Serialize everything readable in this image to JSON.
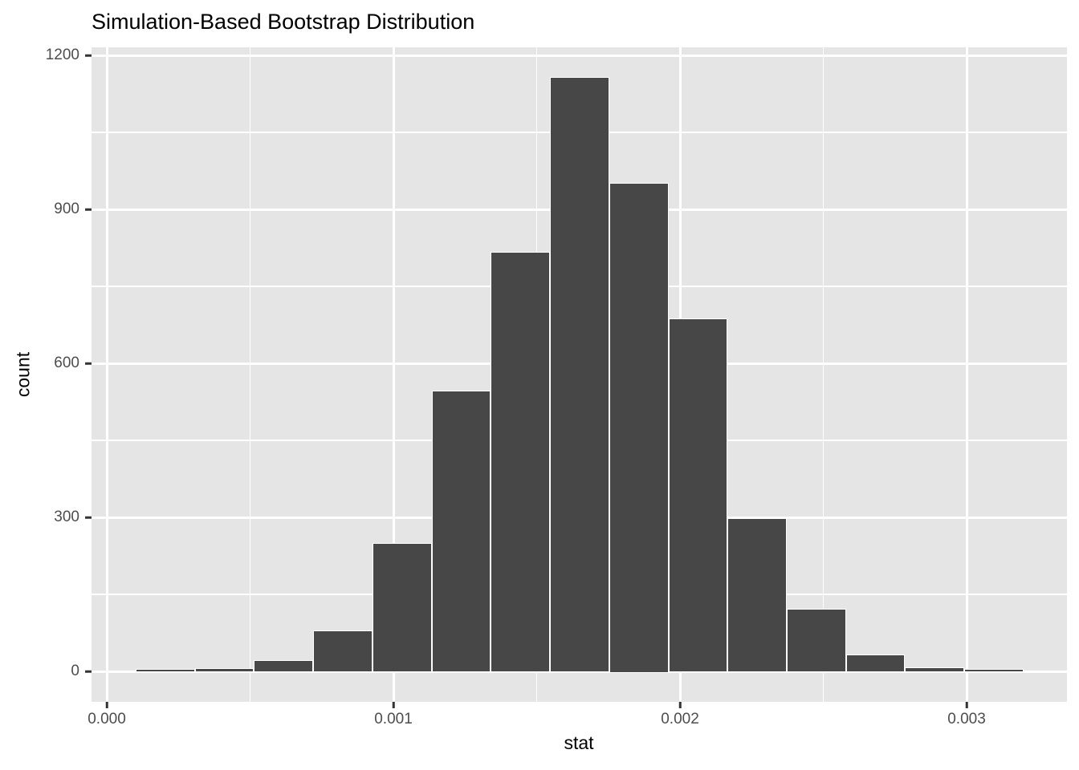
{
  "title": "Simulation-Based Bootstrap Distribution",
  "x_axis": {
    "title": "stat",
    "tick_values": [
      0,
      0.001,
      0.002,
      0.003
    ],
    "tick_labels": [
      "0.000",
      "0.001",
      "0.002",
      "0.003"
    ]
  },
  "y_axis": {
    "title": "count",
    "tick_values": [
      0,
      300,
      600,
      900,
      1200
    ],
    "tick_labels": [
      "0",
      "300",
      "600",
      "900",
      "1200"
    ]
  },
  "chart_data": {
    "type": "histogram",
    "title": "Simulation-Based Bootstrap Distribution",
    "xlabel": "stat",
    "ylabel": "count",
    "bins": 15,
    "bin_start": 0.000101,
    "bin_width": 0.0002065,
    "counts": [
      2,
      4,
      20,
      77,
      247,
      545,
      815,
      1155,
      950,
      685,
      296,
      120,
      31,
      5,
      2
    ],
    "x_tick_values": [
      0,
      0.001,
      0.002,
      0.003
    ],
    "x_tick_labels": [
      "0.000",
      "0.001",
      "0.002",
      "0.003"
    ],
    "y_tick_values": [
      0,
      300,
      600,
      900,
      1200
    ],
    "y_tick_labels": [
      "0",
      "300",
      "600",
      "900",
      "1200"
    ],
    "xlim": [
      -5.3e-05,
      0.00335
    ],
    "ylim": [
      -58,
      1218
    ],
    "grid": true,
    "legend": "none",
    "colors": {
      "bar_fill": "#474747",
      "bar_border": "#FFFFFF",
      "panel_background": "#E5E5E5",
      "gridline": "#FFFFFF",
      "tick_label": "#4D4D4D",
      "axis_title": "#000000",
      "tick_mark": "#333333"
    }
  }
}
